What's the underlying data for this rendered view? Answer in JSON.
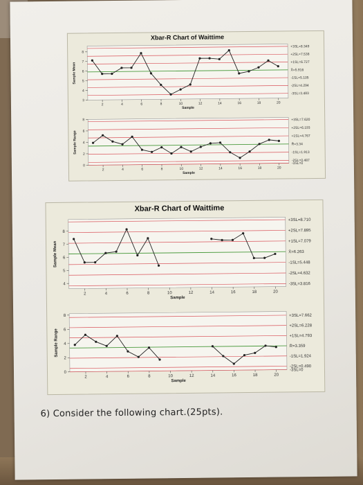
{
  "question_text": "6) Consider the following chart.(25pts).",
  "colors": {
    "limit_line": "#d9535a",
    "center_line": "#4a9a3c",
    "data_line": "#222222",
    "panel_bg": "#eceadc"
  },
  "chart_data": [
    {
      "type": "line",
      "title": "Xbar-R Chart of Waittime",
      "xlabel": "Sample",
      "ylabel": "Sample Mean",
      "xticks": [
        2,
        4,
        6,
        8,
        10,
        12,
        14,
        16,
        18,
        20
      ],
      "yticks": [
        3,
        4,
        5,
        6,
        7,
        8
      ],
      "ylim": [
        3,
        8.6
      ],
      "limits": [
        {
          "label": "+3SL=8.349",
          "value": 8.349,
          "kind": "limit"
        },
        {
          "label": "+2SL=7.538",
          "value": 7.538,
          "kind": "limit"
        },
        {
          "label": "+1SL=6.727",
          "value": 6.727,
          "kind": "limit"
        },
        {
          "label": "X̄=5.916",
          "value": 5.916,
          "kind": "center"
        },
        {
          "label": "-1SL=5.105",
          "value": 5.105,
          "kind": "limit"
        },
        {
          "label": "-2SL=4.294",
          "value": 4.294,
          "kind": "limit"
        },
        {
          "label": "-3SL=3.483",
          "value": 3.483,
          "kind": "limit"
        }
      ],
      "x": [
        1,
        2,
        3,
        4,
        5,
        6,
        7,
        8,
        9,
        10,
        11,
        12,
        13,
        14,
        15,
        16,
        17,
        18,
        19,
        20
      ],
      "values": [
        7.1,
        5.7,
        5.7,
        6.3,
        6.3,
        7.8,
        5.7,
        4.5,
        3.5,
        4.0,
        4.5,
        7.2,
        7.2,
        7.1,
        8.0,
        5.6,
        5.8,
        6.2,
        6.9,
        6.3
      ]
    },
    {
      "type": "line",
      "title": "",
      "xlabel": "Sample",
      "ylabel": "Sample Range",
      "xticks": [
        2,
        4,
        6,
        8,
        10,
        12,
        14,
        16,
        18,
        20
      ],
      "yticks": [
        0,
        2,
        4,
        6,
        8
      ],
      "ylim": [
        0,
        8
      ],
      "limits": [
        {
          "label": "+3SL=7.620",
          "value": 7.62,
          "kind": "limit"
        },
        {
          "label": "+2SL=6.193",
          "value": 6.193,
          "kind": "limit"
        },
        {
          "label": "+1SL=4.767",
          "value": 4.767,
          "kind": "limit"
        },
        {
          "label": "R̄=3.34",
          "value": 3.34,
          "kind": "center"
        },
        {
          "label": "-1SL=1.913",
          "value": 1.913,
          "kind": "limit"
        },
        {
          "label": "-2SL=0.487",
          "value": 0.487,
          "kind": "limit"
        },
        {
          "label": "-3SL=0",
          "value": 0,
          "kind": "limit"
        }
      ],
      "x": [
        1,
        2,
        3,
        4,
        5,
        6,
        7,
        8,
        9,
        10,
        11,
        12,
        13,
        14,
        15,
        16,
        17,
        18,
        19,
        20
      ],
      "values": [
        3.9,
        5.2,
        4.1,
        3.6,
        4.9,
        2.6,
        2.2,
        3.0,
        1.9,
        3.0,
        2.2,
        3.0,
        3.6,
        3.7,
        2.0,
        1.0,
        2.1,
        3.4,
        4.1,
        3.9
      ]
    },
    {
      "type": "line",
      "title": "Xbar-R Chart of Waittime",
      "xlabel": "Sample",
      "ylabel": "Sample Mean",
      "xticks": [
        2,
        4,
        6,
        8,
        10,
        12,
        14,
        16,
        18,
        20
      ],
      "yticks": [
        4,
        5,
        6,
        7,
        8
      ],
      "ylim": [
        3.6,
        8.9
      ],
      "limits": [
        {
          "label": "+3SL=8.710",
          "value": 8.71,
          "kind": "limit"
        },
        {
          "label": "+2SL=7.895",
          "value": 7.895,
          "kind": "limit"
        },
        {
          "label": "+1SL=7.079",
          "value": 7.079,
          "kind": "limit"
        },
        {
          "label": "X̄=6.263",
          "value": 6.263,
          "kind": "center"
        },
        {
          "label": "-1SL=5.448",
          "value": 5.448,
          "kind": "limit"
        },
        {
          "label": "-2SL=4.632",
          "value": 4.632,
          "kind": "limit"
        },
        {
          "label": "-3SL=3.816",
          "value": 3.816,
          "kind": "limit"
        }
      ],
      "segments": [
        {
          "x": [
            1,
            2,
            3,
            4,
            5,
            6,
            7,
            8,
            9
          ],
          "values": [
            7.4,
            5.6,
            5.6,
            6.3,
            6.4,
            8.1,
            6.1,
            7.4,
            5.3
          ]
        },
        {
          "x": [
            14,
            15,
            16,
            17,
            18,
            19,
            20
          ],
          "values": [
            7.3,
            7.2,
            7.2,
            7.7,
            5.8,
            5.8,
            6.1
          ]
        }
      ]
    },
    {
      "type": "line",
      "title": "",
      "xlabel": "Sample",
      "ylabel": "Sample Range",
      "xticks": [
        2,
        4,
        6,
        8,
        10,
        12,
        14,
        16,
        18,
        20
      ],
      "yticks": [
        0,
        2,
        4,
        6,
        8
      ],
      "ylim": [
        0,
        8.2
      ],
      "limits": [
        {
          "label": "+3SL=7.662",
          "value": 7.662,
          "kind": "limit"
        },
        {
          "label": "+2SL=6.228",
          "value": 6.228,
          "kind": "limit"
        },
        {
          "label": "+1SL=4.793",
          "value": 4.793,
          "kind": "limit"
        },
        {
          "label": "R̄=3.359",
          "value": 3.359,
          "kind": "center"
        },
        {
          "label": "-1SL=1.924",
          "value": 1.924,
          "kind": "limit"
        },
        {
          "label": "-2SL=0.490",
          "value": 0.49,
          "kind": "limit"
        },
        {
          "label": "-3SL=0",
          "value": 0,
          "kind": "limit"
        }
      ],
      "segments": [
        {
          "x": [
            1,
            2,
            3,
            4,
            5,
            6,
            7,
            8,
            9
          ],
          "values": [
            3.8,
            5.2,
            4.2,
            3.6,
            5.0,
            2.8,
            2.0,
            3.3,
            1.6
          ]
        },
        {
          "x": [
            14,
            15,
            16,
            17,
            18,
            19,
            20
          ],
          "values": [
            3.4,
            2.0,
            0.9,
            2.1,
            2.4,
            3.4,
            3.2
          ]
        }
      ]
    }
  ]
}
